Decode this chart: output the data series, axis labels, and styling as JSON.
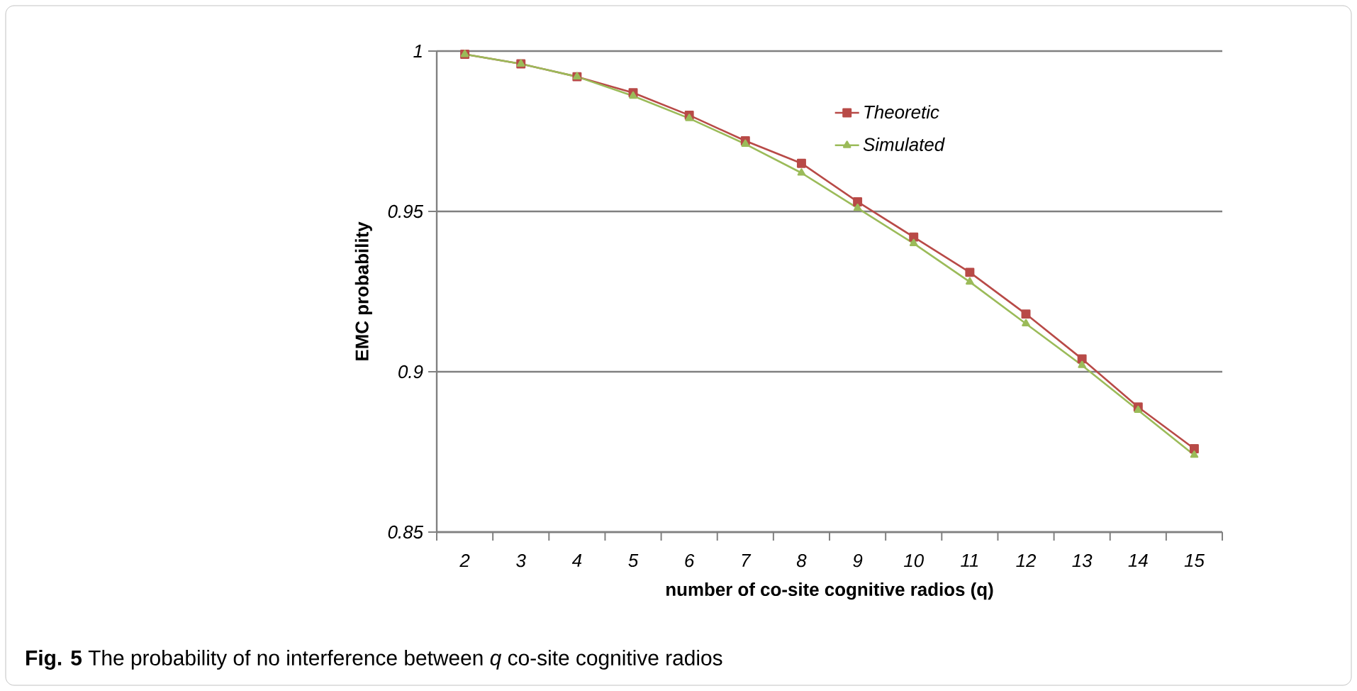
{
  "chart_data": {
    "type": "line",
    "xlabel": "number of co-site cognitive radios (q)",
    "ylabel": "EMC probability",
    "categories": [
      "2",
      "3",
      "4",
      "5",
      "6",
      "7",
      "8",
      "9",
      "10",
      "11",
      "12",
      "13",
      "14",
      "15"
    ],
    "series": [
      {
        "name": "Theoretic",
        "color": "#b84a47",
        "marker": "square",
        "values": [
          0.999,
          0.996,
          0.992,
          0.987,
          0.98,
          0.972,
          0.965,
          0.953,
          0.942,
          0.931,
          0.918,
          0.904,
          0.889,
          0.876
        ]
      },
      {
        "name": "Simulated",
        "color": "#9bbb59",
        "marker": "triangle",
        "values": [
          0.999,
          0.996,
          0.992,
          0.986,
          0.979,
          0.971,
          0.962,
          0.951,
          0.94,
          0.928,
          0.915,
          0.902,
          0.888,
          0.874
        ]
      }
    ],
    "ylim": [
      0.85,
      1
    ],
    "yticks": [
      0.85,
      0.9,
      0.95,
      1
    ],
    "grid": "y",
    "legend": "top right",
    "line_style": "solid",
    "annotations": [
      "**Fig. 5**  The probability of no interference between *q* co-site cognitive radios"
    ]
  }
}
